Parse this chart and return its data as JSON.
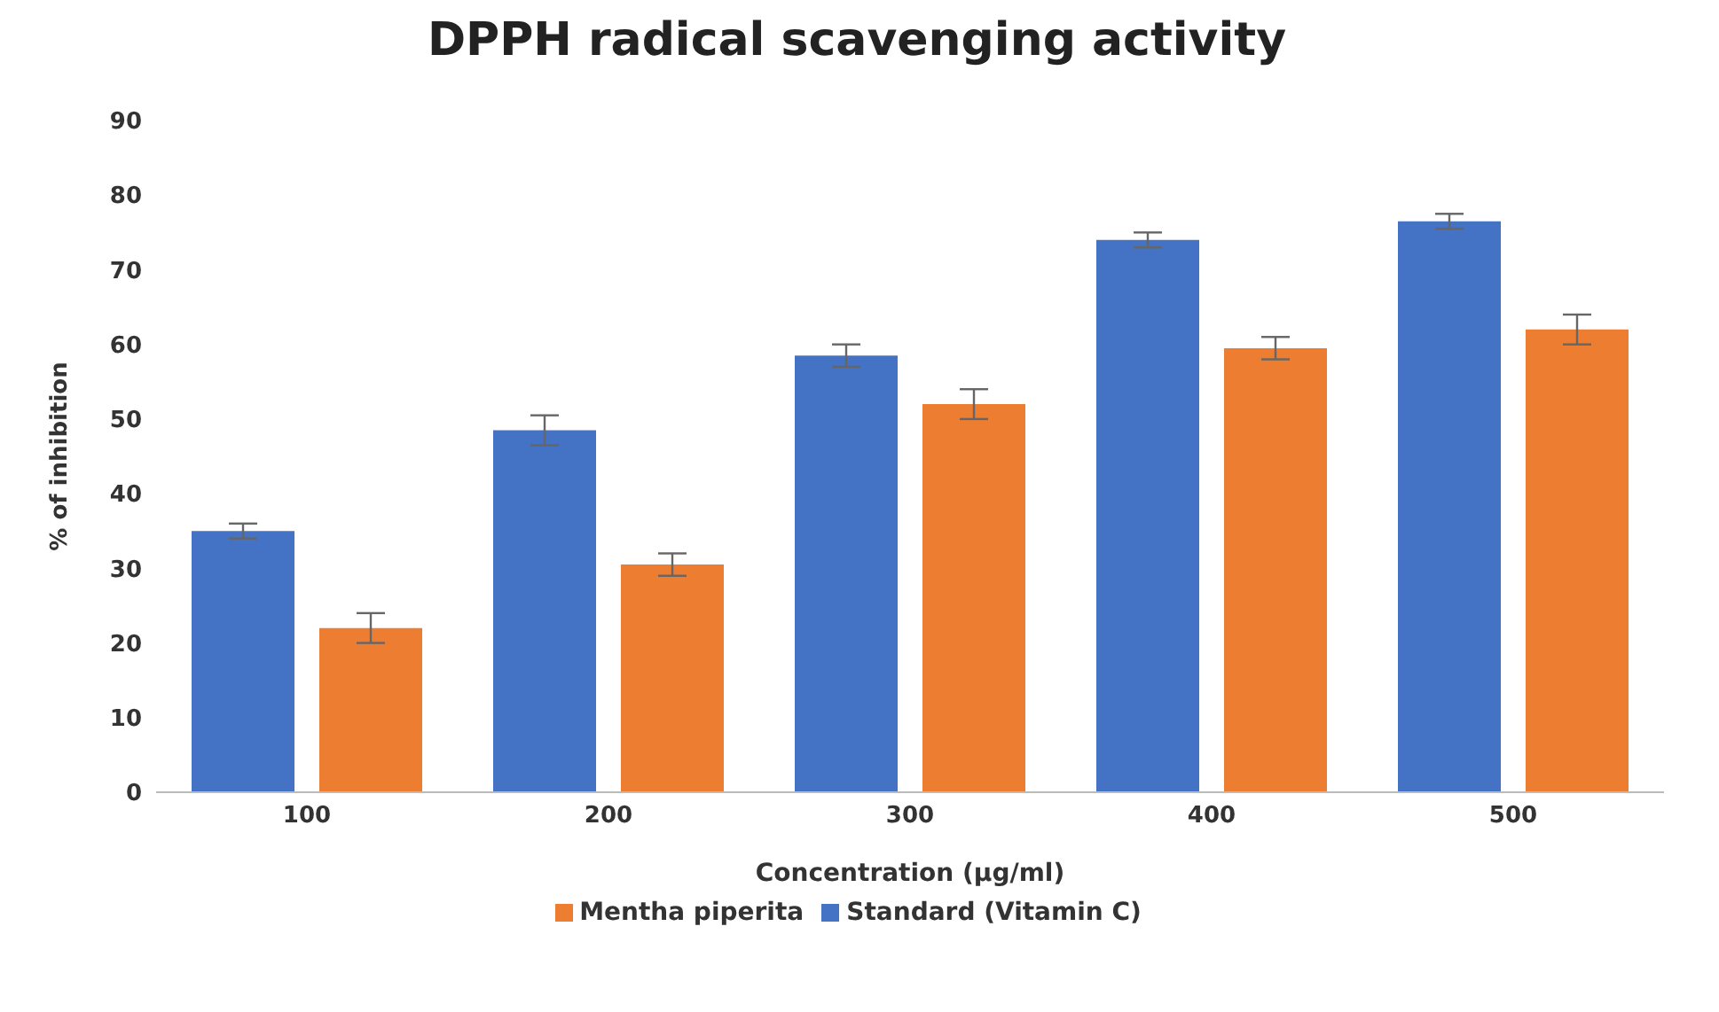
{
  "chart_data": {
    "type": "bar",
    "title": "DPPH radical scavenging activity",
    "xlabel": "Concentration (µg/ml)",
    "ylabel": "% of inhibition",
    "categories": [
      "100",
      "200",
      "300",
      "400",
      "500"
    ],
    "series": [
      {
        "name": "Standard (Vitamin C)",
        "color": "#4472c4",
        "values": [
          35,
          48.5,
          58.5,
          74,
          76.5
        ],
        "errors": [
          1,
          2,
          1.5,
          1,
          1
        ]
      },
      {
        "name": "Mentha piperita",
        "color": "#ed7d31",
        "values": [
          22,
          30.5,
          52,
          59.5,
          62
        ],
        "errors": [
          2,
          1.5,
          2,
          1.5,
          2
        ]
      }
    ],
    "ylim": [
      0,
      90
    ],
    "yticks": [
      0,
      10,
      20,
      30,
      40,
      50,
      60,
      70,
      80,
      90
    ],
    "grid": false,
    "legend": "bottom"
  }
}
